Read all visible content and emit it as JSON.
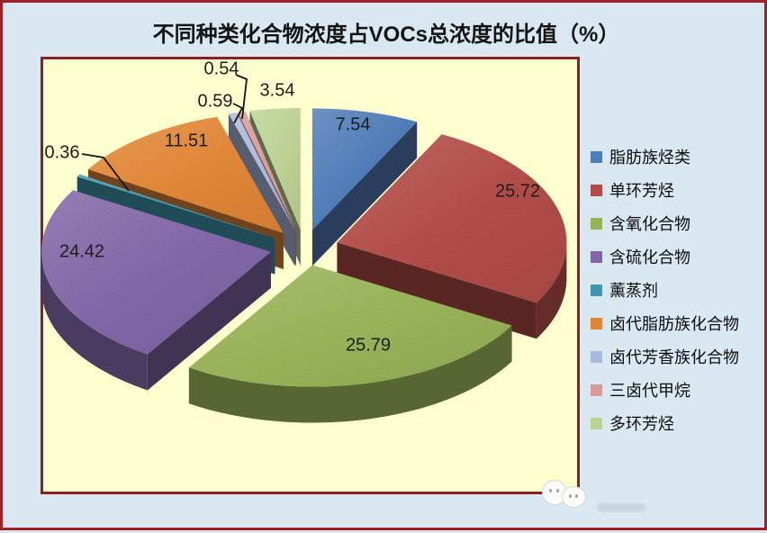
{
  "page": {
    "background_color": "#d9e8f1",
    "outer_border_color": "#a22126"
  },
  "chart": {
    "plot_background_color": "#fffecf",
    "plot_border_color": "#8e1f1f",
    "label_text_color": "#1d1d1d",
    "legend_text_color": "#0d0d0d"
  },
  "chart_data": {
    "type": "pie",
    "style": "3d-exploded",
    "title": "不同种类化合物浓度占VOCs总浓度的比值（%）",
    "unit": "%",
    "legend_position": "right",
    "label_format": "value, 2 decimals",
    "slices": [
      {
        "label": "脂肪族烃类",
        "value": 7.54,
        "color": "#4f7cb8"
      },
      {
        "label": "单环芳烃",
        "value": 25.72,
        "color": "#b14c48"
      },
      {
        "label": "含氧化合物",
        "value": 25.79,
        "color": "#97b257"
      },
      {
        "label": "含硫化合物",
        "value": 24.42,
        "color": "#8066a6"
      },
      {
        "label": "薰蒸剂",
        "value": 0.36,
        "color": "#3e98ab"
      },
      {
        "label": "卤代脂肪族化合物",
        "value": 11.51,
        "color": "#e08637"
      },
      {
        "label": "卤代芳香族化合物",
        "value": 0.59,
        "color": "#aab9de"
      },
      {
        "label": "三卤代甲烷",
        "value": 0.54,
        "color": "#d89b99"
      },
      {
        "label": "多环芳烃",
        "value": 3.54,
        "color": "#bdd295"
      }
    ]
  }
}
